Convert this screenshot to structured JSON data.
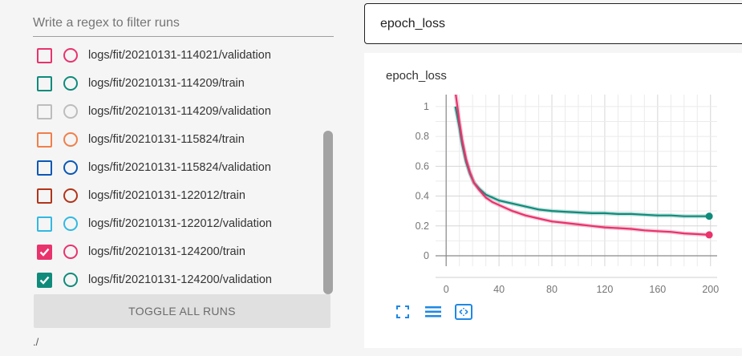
{
  "filter": {
    "placeholder": "Write a regex to filter runs"
  },
  "runs": [
    {
      "label": "logs/fit/20210131-114021/validation",
      "color": "#e8336d",
      "checked": false
    },
    {
      "label": "logs/fit/20210131-114209/train",
      "color": "#0f8b7b",
      "checked": false
    },
    {
      "label": "logs/fit/20210131-114209/validation",
      "color": "#bdbdbd",
      "checked": false
    },
    {
      "label": "logs/fit/20210131-115824/train",
      "color": "#f07f4b",
      "checked": false
    },
    {
      "label": "logs/fit/20210131-115824/validation",
      "color": "#0b57b6",
      "checked": false
    },
    {
      "label": "logs/fit/20210131-122012/train",
      "color": "#b2341a",
      "checked": false
    },
    {
      "label": "logs/fit/20210131-122012/validation",
      "color": "#32b8e3",
      "checked": false
    },
    {
      "label": "logs/fit/20210131-124200/train",
      "color": "#e8336d",
      "checked": true
    },
    {
      "label": "logs/fit/20210131-124200/validation",
      "color": "#0f8b7b",
      "checked": true
    }
  ],
  "toggle_label": "TOGGLE ALL RUNS",
  "logdir": "./",
  "tag_filter": "epoch_loss",
  "card": {
    "title": "epoch_loss"
  },
  "icons": [
    "fit-domain-icon",
    "toggle-log-scale-icon",
    "fit-to-data-icon"
  ],
  "chart_data": {
    "type": "line",
    "title": "epoch_loss",
    "xlim": [
      -8,
      205
    ],
    "ylim": [
      -0.07,
      1.08
    ],
    "x_ticks": [
      0,
      40,
      80,
      120,
      160,
      200
    ],
    "y_ticks": [
      0,
      0.2,
      0.4,
      0.6,
      0.8,
      1
    ],
    "grid": true,
    "series": [
      {
        "color": "#e8336d",
        "x": [
          7,
          10,
          12,
          15,
          18,
          21,
          25,
          30,
          35,
          40,
          50,
          60,
          70,
          80,
          90,
          100,
          110,
          120,
          130,
          140,
          150,
          160,
          170,
          180,
          190,
          199
        ],
        "y": [
          1.1,
          0.9,
          0.78,
          0.65,
          0.56,
          0.49,
          0.44,
          0.39,
          0.36,
          0.34,
          0.3,
          0.27,
          0.25,
          0.23,
          0.22,
          0.21,
          0.2,
          0.19,
          0.185,
          0.18,
          0.17,
          0.165,
          0.16,
          0.15,
          0.145,
          0.14
        ]
      },
      {
        "color": "#0f8b7b",
        "x": [
          7,
          10,
          12,
          15,
          18,
          21,
          25,
          30,
          35,
          40,
          50,
          60,
          70,
          80,
          90,
          100,
          110,
          120,
          130,
          140,
          150,
          160,
          170,
          180,
          190,
          199
        ],
        "y": [
          1.0,
          0.86,
          0.75,
          0.63,
          0.55,
          0.49,
          0.45,
          0.41,
          0.39,
          0.37,
          0.35,
          0.33,
          0.31,
          0.3,
          0.295,
          0.29,
          0.285,
          0.285,
          0.28,
          0.28,
          0.275,
          0.27,
          0.27,
          0.265,
          0.265,
          0.265
        ]
      }
    ]
  }
}
